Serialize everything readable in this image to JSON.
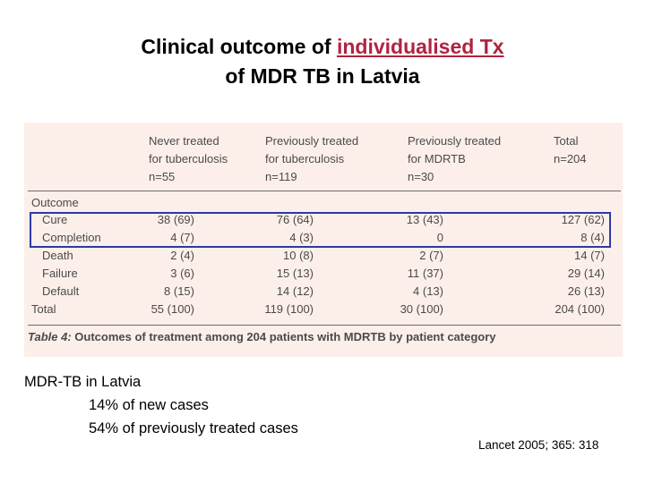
{
  "title": {
    "line1_pre": "Clinical outcome of ",
    "line1_link": "individualised Tx",
    "line2": "of MDR TB in Latvia"
  },
  "table": {
    "headers": [
      [
        "Never treated",
        "for tuberculosis",
        "n=55"
      ],
      [
        "Previously treated",
        "for tuberculosis",
        "n=119"
      ],
      [
        "Previously treated",
        "for MDRTB",
        "n=30"
      ],
      [
        "Total",
        "n=204",
        ""
      ]
    ],
    "section_label": "Outcome",
    "rows": [
      {
        "label": "Cure",
        "values": [
          "38 (69)",
          "76 (64)",
          "13 (43)",
          "127 (62)"
        ]
      },
      {
        "label": "Completion",
        "values": [
          "4 (7)",
          "4 (3)",
          "0",
          "8 (4)"
        ]
      },
      {
        "label": "Death",
        "values": [
          "2 (4)",
          "10 (8)",
          "2 (7)",
          "14 (7)"
        ]
      },
      {
        "label": "Failure",
        "values": [
          "3 (6)",
          "15 (13)",
          "11 (37)",
          "29 (14)"
        ]
      },
      {
        "label": "Default",
        "values": [
          "8 (15)",
          "14 (12)",
          "4 (13)",
          "26 (13)"
        ]
      },
      {
        "label": "Total",
        "values": [
          "55 (100)",
          "119 (100)",
          "30 (100)",
          "204 (100)"
        ]
      }
    ],
    "caption_label": "Table 4:",
    "caption_text": " Outcomes of treatment among 204 patients with MDRTB by patient category"
  },
  "notes": {
    "heading": "MDR-TB in Latvia",
    "line1": "14% of new cases",
    "line2": "54% of previously treated cases"
  },
  "citation": "Lancet 2005; 365: 318"
}
